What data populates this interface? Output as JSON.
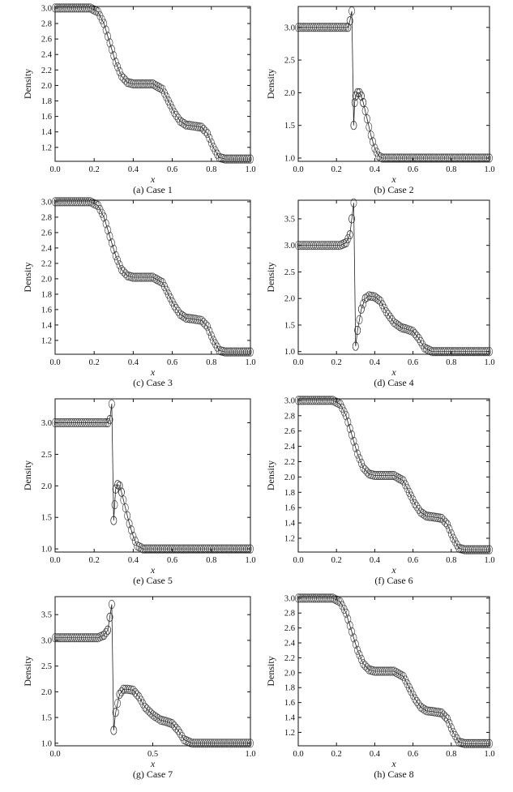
{
  "chart_data": [
    {
      "type": "scatter",
      "caption": "(a) Case 1",
      "profile": "rarefaction",
      "rho_left": 3.0,
      "xlabel": "x",
      "ylabel": "Density",
      "xlim": [
        0,
        1
      ],
      "ylim": [
        1.02,
        3.02
      ],
      "xticks": [
        "0.0",
        "0.2",
        "0.4",
        "0.6",
        "0.8",
        "1.0"
      ],
      "yticks": [
        "1.2",
        "1.4",
        "1.6",
        "1.8",
        "2.0",
        "2.2",
        "2.4",
        "2.6",
        "2.8",
        "3.0"
      ],
      "x": [
        0,
        0.18,
        0.22,
        0.25,
        0.28,
        0.31,
        0.34,
        0.37,
        0.4,
        0.5,
        0.55,
        0.58,
        0.61,
        0.64,
        0.67,
        0.7,
        0.75,
        0.78,
        0.81,
        0.84,
        0.87,
        1.0
      ],
      "y": [
        3.0,
        3.0,
        2.95,
        2.8,
        2.55,
        2.3,
        2.12,
        2.04,
        2.02,
        2.02,
        1.95,
        1.8,
        1.65,
        1.54,
        1.49,
        1.48,
        1.46,
        1.38,
        1.2,
        1.07,
        1.05,
        1.05
      ]
    },
    {
      "type": "scatter",
      "caption": "(b) Case 2",
      "profile": "shock",
      "rho_left": 3.0,
      "xlabel": "x",
      "ylabel": "Density",
      "xlim": [
        0,
        1
      ],
      "ylim": [
        0.95,
        3.32
      ],
      "xticks": [
        "0.0",
        "0.2",
        "0.4",
        "0.6",
        "0.8",
        "1.0"
      ],
      "yticks": [
        "1.0",
        "1.5",
        "2.0",
        "2.5",
        "3.0"
      ],
      "x": [
        0,
        0.26,
        0.27,
        0.28,
        0.29,
        0.295,
        0.3,
        0.31,
        0.32,
        0.33,
        0.34,
        0.36,
        0.38,
        0.4,
        0.42,
        0.44,
        1.0
      ],
      "y": [
        3.0,
        3.0,
        3.1,
        3.25,
        1.5,
        1.85,
        1.95,
        2.0,
        2.0,
        1.95,
        1.85,
        1.6,
        1.35,
        1.15,
        1.03,
        1.0,
        1.0
      ]
    },
    {
      "type": "scatter",
      "caption": "(c) Case 3",
      "profile": "rarefaction",
      "rho_left": 3.0,
      "xlabel": "x",
      "ylabel": "Density",
      "xlim": [
        0,
        1
      ],
      "ylim": [
        1.02,
        3.02
      ],
      "xticks": [
        "0.0",
        "0.2",
        "0.4",
        "0.6",
        "0.8",
        "1.0"
      ],
      "yticks": [
        "1.2",
        "1.4",
        "1.6",
        "1.8",
        "2.0",
        "2.2",
        "2.4",
        "2.6",
        "2.8",
        "3.0"
      ],
      "x": [
        0,
        0.18,
        0.22,
        0.25,
        0.28,
        0.31,
        0.34,
        0.37,
        0.4,
        0.5,
        0.55,
        0.58,
        0.61,
        0.64,
        0.67,
        0.7,
        0.75,
        0.78,
        0.81,
        0.84,
        0.87,
        1.0
      ],
      "y": [
        3.0,
        3.0,
        2.95,
        2.8,
        2.55,
        2.3,
        2.12,
        2.04,
        2.02,
        2.02,
        1.95,
        1.8,
        1.65,
        1.54,
        1.49,
        1.48,
        1.46,
        1.38,
        1.2,
        1.07,
        1.05,
        1.05
      ]
    },
    {
      "type": "scatter",
      "caption": "(d) Case 4",
      "profile": "shock",
      "rho_left": 3.0,
      "xlabel": "x",
      "ylabel": "Density",
      "xlim": [
        0,
        1
      ],
      "ylim": [
        0.95,
        3.85
      ],
      "xticks": [
        "0.0",
        "0.2",
        "0.4",
        "0.6",
        "0.8",
        "1.0"
      ],
      "yticks": [
        "1.0",
        "1.5",
        "2.0",
        "2.5",
        "3.0",
        "3.5"
      ],
      "x": [
        0,
        0.22,
        0.25,
        0.27,
        0.28,
        0.29,
        0.3,
        0.31,
        0.33,
        0.35,
        0.37,
        0.4,
        0.43,
        0.46,
        0.5,
        0.54,
        0.57,
        0.6,
        0.63,
        0.66,
        0.7,
        1.0
      ],
      "y": [
        3.0,
        3.0,
        3.05,
        3.2,
        3.5,
        3.8,
        1.1,
        1.4,
        1.8,
        2.0,
        2.05,
        2.03,
        1.95,
        1.75,
        1.55,
        1.45,
        1.42,
        1.38,
        1.25,
        1.07,
        1.0,
        1.0
      ]
    },
    {
      "type": "scatter",
      "caption": "(e) Case 5",
      "profile": "shock",
      "rho_left": 3.0,
      "xlabel": "x",
      "ylabel": "Density",
      "xlim": [
        0,
        1
      ],
      "ylim": [
        0.95,
        3.38
      ],
      "xticks": [
        "0.0",
        "0.2",
        "0.4",
        "0.6",
        "0.8",
        "1.0"
      ],
      "yticks": [
        "1.0",
        "1.5",
        "2.0",
        "2.5",
        "3.0"
      ],
      "x": [
        0,
        0.27,
        0.28,
        0.29,
        0.3,
        0.305,
        0.31,
        0.32,
        0.33,
        0.34,
        0.36,
        0.38,
        0.4,
        0.42,
        0.45,
        1.0
      ],
      "y": [
        3.0,
        3.0,
        3.05,
        3.3,
        1.45,
        1.7,
        1.95,
        2.02,
        2.0,
        1.9,
        1.65,
        1.4,
        1.2,
        1.05,
        1.0,
        1.0
      ]
    },
    {
      "type": "scatter",
      "caption": "(f) Case 6",
      "profile": "rarefaction",
      "rho_left": 3.0,
      "xlabel": "x",
      "ylabel": "Density",
      "xlim": [
        0,
        1
      ],
      "ylim": [
        1.02,
        3.02
      ],
      "xticks": [
        "0.0",
        "0.2",
        "0.4",
        "0.6",
        "0.8",
        "1.0"
      ],
      "yticks": [
        "1.2",
        "1.4",
        "1.6",
        "1.8",
        "2.0",
        "2.2",
        "2.4",
        "2.6",
        "2.8",
        "3.0"
      ],
      "x": [
        0,
        0.18,
        0.22,
        0.25,
        0.28,
        0.31,
        0.34,
        0.37,
        0.4,
        0.5,
        0.55,
        0.58,
        0.61,
        0.64,
        0.67,
        0.7,
        0.75,
        0.78,
        0.81,
        0.84,
        0.87,
        1.0
      ],
      "y": [
        3.0,
        3.0,
        2.95,
        2.8,
        2.55,
        2.3,
        2.12,
        2.04,
        2.02,
        2.02,
        1.95,
        1.8,
        1.65,
        1.54,
        1.49,
        1.48,
        1.46,
        1.38,
        1.2,
        1.07,
        1.05,
        1.05
      ]
    },
    {
      "type": "scatter",
      "caption": "(g) Case 7",
      "profile": "shock",
      "rho_left": 3.05,
      "xlabel": "x",
      "ylabel": "Density",
      "xlim": [
        0,
        1
      ],
      "ylim": [
        0.95,
        3.85
      ],
      "xticks": [
        "0.0",
        "0.5",
        "1.0"
      ],
      "yticks": [
        "1.0",
        "1.5",
        "2.0",
        "2.5",
        "3.0",
        "3.5"
      ],
      "x": [
        0,
        0.22,
        0.25,
        0.27,
        0.28,
        0.29,
        0.3,
        0.31,
        0.33,
        0.35,
        0.37,
        0.4,
        0.43,
        0.46,
        0.5,
        0.54,
        0.57,
        0.6,
        0.63,
        0.66,
        0.7,
        1.0
      ],
      "y": [
        3.05,
        3.05,
        3.1,
        3.2,
        3.45,
        3.7,
        1.25,
        1.6,
        1.95,
        2.05,
        2.05,
        2.03,
        1.9,
        1.7,
        1.55,
        1.45,
        1.42,
        1.38,
        1.25,
        1.07,
        1.0,
        1.0
      ]
    },
    {
      "type": "scatter",
      "caption": "(h) Case 8",
      "profile": "rarefaction",
      "rho_left": 3.0,
      "xlabel": "x",
      "ylabel": "Density",
      "xlim": [
        0,
        1
      ],
      "ylim": [
        1.02,
        3.02
      ],
      "xticks": [
        "0.0",
        "0.2",
        "0.4",
        "0.6",
        "0.8",
        "1.0"
      ],
      "yticks": [
        "1.2",
        "1.4",
        "1.6",
        "1.8",
        "2.0",
        "2.2",
        "2.4",
        "2.6",
        "2.8",
        "3.0"
      ],
      "x": [
        0,
        0.18,
        0.22,
        0.25,
        0.28,
        0.31,
        0.34,
        0.37,
        0.4,
        0.5,
        0.55,
        0.58,
        0.61,
        0.64,
        0.67,
        0.7,
        0.75,
        0.78,
        0.81,
        0.84,
        0.87,
        1.0
      ],
      "y": [
        3.0,
        3.0,
        2.95,
        2.8,
        2.55,
        2.3,
        2.12,
        2.04,
        2.02,
        2.02,
        1.95,
        1.8,
        1.65,
        1.54,
        1.49,
        1.48,
        1.46,
        1.38,
        1.2,
        1.07,
        1.05,
        1.05
      ]
    }
  ]
}
